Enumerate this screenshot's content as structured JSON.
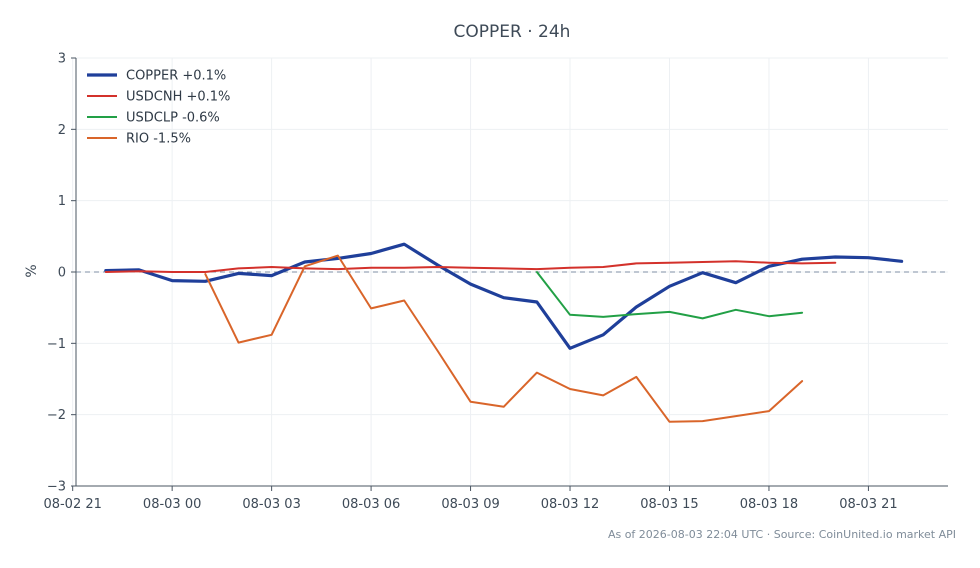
{
  "chart_data": {
    "type": "line",
    "title": "COPPER · 24h",
    "xlabel": "",
    "ylabel": "%",
    "ylim": [
      -3,
      3
    ],
    "xlim_hours": [
      -2.9,
      23.4
    ],
    "x_tick_labels": [
      "08-02 21",
      "08-03 00",
      "08-03 03",
      "08-03 06",
      "08-03 09",
      "08-03 12",
      "08-03 15",
      "08-03 18",
      "08-03 21"
    ],
    "x_tick_hours": [
      -3,
      0,
      3,
      6,
      9,
      12,
      15,
      18,
      21
    ],
    "y_ticks": [
      3,
      2,
      1,
      0,
      -1,
      -2,
      -3
    ],
    "y_tick_labels": [
      "3",
      "2",
      "1",
      "0",
      "−1",
      "−2",
      "−3"
    ],
    "zero_line": true,
    "legend_position": "top-left",
    "grid": true,
    "series": [
      {
        "name": "COPPER +0.1%",
        "color": "#1f3f9a",
        "width": 3.2,
        "x": [
          -2,
          -1,
          0,
          1,
          2,
          3,
          4,
          5,
          6,
          7,
          8,
          9,
          10,
          11,
          12,
          13,
          14,
          15,
          16,
          17,
          18,
          19,
          20,
          21,
          22
        ],
        "values": [
          0.02,
          0.03,
          -0.12,
          -0.13,
          -0.02,
          -0.05,
          0.14,
          0.19,
          0.26,
          0.39,
          0.1,
          -0.17,
          -0.36,
          -0.42,
          -1.07,
          -0.88,
          -0.49,
          -0.2,
          -0.01,
          -0.15,
          0.08,
          0.18,
          0.21,
          0.2,
          0.15
        ]
      },
      {
        "name": "USDCNH +0.1%",
        "color": "#d3312b",
        "width": 2,
        "x": [
          -2,
          -1,
          0,
          1,
          2,
          3,
          4,
          5,
          6,
          7,
          8,
          9,
          10,
          11,
          12,
          13,
          14,
          15,
          16,
          17,
          18,
          19,
          20
        ],
        "values": [
          0.0,
          0.01,
          0.0,
          0.0,
          0.05,
          0.07,
          0.05,
          0.04,
          0.06,
          0.06,
          0.07,
          0.06,
          0.05,
          0.04,
          0.06,
          0.07,
          0.12,
          0.13,
          0.14,
          0.15,
          0.13,
          0.12,
          0.13
        ]
      },
      {
        "name": "USDCLP -0.6%",
        "color": "#22a046",
        "width": 2,
        "x": [
          11,
          12,
          13,
          14,
          15,
          16,
          17,
          18,
          19
        ],
        "values": [
          0.0,
          -0.6,
          -0.63,
          -0.59,
          -0.56,
          -0.65,
          -0.53,
          -0.62,
          -0.57
        ]
      },
      {
        "name": "RIO -1.5%",
        "color": "#d9652a",
        "width": 2,
        "x": [
          1,
          2,
          3,
          4,
          5,
          6,
          7,
          8,
          9,
          10,
          11,
          12,
          13,
          14,
          15,
          16,
          17,
          18,
          19
        ],
        "values": [
          -0.03,
          -0.99,
          -0.88,
          0.08,
          0.23,
          -0.51,
          -0.4,
          -1.1,
          -1.82,
          -1.89,
          -1.41,
          -1.64,
          -1.73,
          -1.47,
          -2.1,
          -2.09,
          -2.02,
          -1.95,
          -1.53
        ]
      }
    ]
  },
  "footer": {
    "note": "As of 2026-08-03 22:04 UTC · Source: CoinUnited.io market API"
  }
}
